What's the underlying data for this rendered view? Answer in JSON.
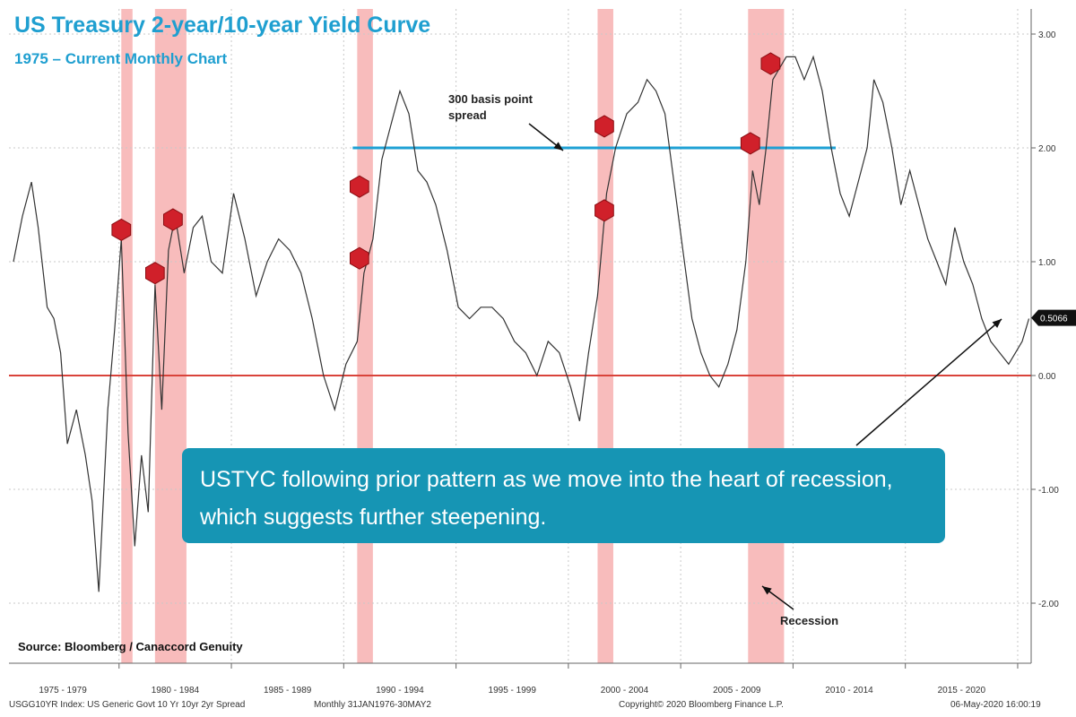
{
  "header": {
    "title": "US Treasury 2-year/10-year Yield Curve",
    "subtitle": "1975 – Current Monthly Chart"
  },
  "callout": {
    "text": "USTYC following prior pattern as we move into the heart of recession, which suggests further steepening."
  },
  "annotations": {
    "spread_label": "300 basis point spread",
    "recession_label": "Recession",
    "source": "Source: Bloomberg / Canaccord Genuity"
  },
  "footer": {
    "left": "USGG10YR Index: US Generic Govt 10 Yr 10yr 2yr Spread",
    "mid": "Monthly 31JAN1976-30MAY2",
    "copyright": "Copyright© 2020 Bloomberg Finance L.P.",
    "date": "06-May-2020 16:00:19"
  },
  "colors": {
    "title": "#1f9fd0",
    "callout_bg": "#1695b4",
    "recession_band": "#f5a6a6",
    "threshold_line": "#1ea0d4",
    "zero_line": "#d9433b",
    "series_line": "#333333",
    "marker": "#d0202a"
  },
  "chart_data": {
    "type": "line",
    "title": "US Treasury 2-year/10-year Yield Curve",
    "subtitle": "1975 – Current Monthly Chart",
    "x_range": [
      1975.0,
      2020.5
    ],
    "ylim": [
      -2.5,
      3.2
    ],
    "y_ticks": [
      3.0,
      2.0,
      1.0,
      0.0,
      -1.0,
      -2.0
    ],
    "y_tick_labels": [
      "3.00",
      "2.00",
      "1.00",
      "0.00",
      "-1.00",
      "-2.00"
    ],
    "x_ticks": [
      1979,
      1984,
      1989,
      1994,
      1999,
      2004,
      2009,
      2014,
      2019
    ],
    "x_tick_labels": [
      "1975 - 1979",
      "1980 - 1984",
      "1985 - 1989",
      "1990 - 1994",
      "1995 - 1999",
      "2000 - 2004",
      "2005 - 2009",
      "2010 - 2014",
      "2015 - 2020"
    ],
    "current_value_label": "0.5066",
    "current_value": 0.5066,
    "reference_lines": [
      2.0,
      0.0
    ],
    "recessions": [
      [
        1980.0,
        1980.5
      ],
      [
        1981.5,
        1982.9
      ],
      [
        1990.5,
        1991.2
      ],
      [
        2001.2,
        2001.9
      ],
      [
        2007.9,
        2009.5
      ]
    ],
    "markers": [
      [
        1980.0,
        1.28
      ],
      [
        1981.5,
        0.9
      ],
      [
        1982.3,
        1.37
      ],
      [
        1990.6,
        1.66
      ],
      [
        1990.6,
        1.03
      ],
      [
        2001.5,
        2.19
      ],
      [
        2001.5,
        1.45
      ],
      [
        2008.0,
        2.04
      ],
      [
        2008.9,
        2.74
      ]
    ],
    "series": [
      {
        "x": [
          1975.2,
          1975.6,
          1976.0,
          1976.3,
          1976.7,
          1977.0,
          1977.3,
          1977.6,
          1978.0,
          1978.4,
          1978.7,
          1979.0,
          1979.4,
          1979.7,
          1980.0,
          1980.3,
          1980.6,
          1980.9,
          1981.2,
          1981.5,
          1981.8,
          1982.1,
          1982.4,
          1982.8,
          1983.2,
          1983.6,
          1984.0,
          1984.5,
          1985.0,
          1985.5,
          1986.0,
          1986.5,
          1987.0,
          1987.5,
          1988.0,
          1988.5,
          1989.0,
          1989.5,
          1990.0,
          1990.5,
          1990.8,
          1991.2,
          1991.6,
          1992.0,
          1992.4,
          1992.8,
          1993.2,
          1993.6,
          1994.0,
          1994.5,
          1995.0,
          1995.5,
          1996.0,
          1996.5,
          1997.0,
          1997.5,
          1998.0,
          1998.5,
          1999.0,
          1999.5,
          2000.0,
          2000.4,
          2000.8,
          2001.2,
          2001.6,
          2002.0,
          2002.5,
          2003.0,
          2003.4,
          2003.8,
          2004.2,
          2004.6,
          2005.0,
          2005.4,
          2005.8,
          2006.2,
          2006.6,
          2007.0,
          2007.4,
          2007.8,
          2008.1,
          2008.4,
          2008.7,
          2009.0,
          2009.3,
          2009.6,
          2010.0,
          2010.4,
          2010.8,
          2011.2,
          2011.6,
          2012.0,
          2012.4,
          2012.8,
          2013.2,
          2013.5,
          2013.9,
          2014.3,
          2014.7,
          2015.1,
          2015.5,
          2015.9,
          2016.3,
          2016.7,
          2017.1,
          2017.5,
          2017.9,
          2018.3,
          2018.7,
          2019.1,
          2019.5,
          2019.8,
          2020.1,
          2020.4
        ],
        "values": [
          1.0,
          1.4,
          1.7,
          1.3,
          0.6,
          0.5,
          0.2,
          -0.6,
          -0.3,
          -0.7,
          -1.1,
          -1.9,
          -0.3,
          0.4,
          1.2,
          -0.5,
          -1.5,
          -0.7,
          -1.2,
          0.8,
          -0.3,
          1.1,
          1.4,
          0.9,
          1.3,
          1.4,
          1.0,
          0.9,
          1.6,
          1.2,
          0.7,
          1.0,
          1.2,
          1.1,
          0.9,
          0.5,
          0.0,
          -0.3,
          0.1,
          0.3,
          0.9,
          1.2,
          1.9,
          2.2,
          2.5,
          2.3,
          1.8,
          1.7,
          1.5,
          1.1,
          0.6,
          0.5,
          0.6,
          0.6,
          0.5,
          0.3,
          0.2,
          0.0,
          0.3,
          0.2,
          -0.1,
          -0.4,
          0.2,
          0.7,
          1.6,
          2.0,
          2.3,
          2.4,
          2.6,
          2.5,
          2.3,
          1.7,
          1.1,
          0.5,
          0.2,
          0.0,
          -0.1,
          0.1,
          0.4,
          1.0,
          1.8,
          1.5,
          2.0,
          2.6,
          2.7,
          2.8,
          2.8,
          2.6,
          2.8,
          2.5,
          2.0,
          1.6,
          1.4,
          1.7,
          2.0,
          2.6,
          2.4,
          2.0,
          1.5,
          1.8,
          1.5,
          1.2,
          1.0,
          0.8,
          1.3,
          1.0,
          0.8,
          0.5,
          0.3,
          0.2,
          0.1,
          0.2,
          0.3,
          0.5
        ]
      }
    ]
  }
}
